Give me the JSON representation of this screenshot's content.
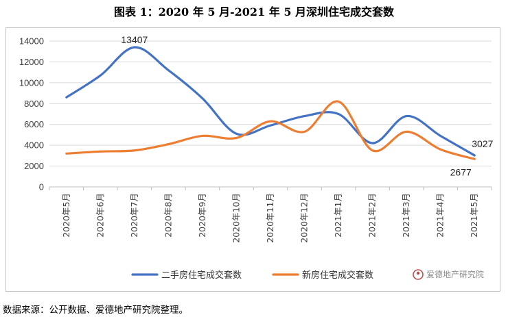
{
  "title": "图表 1：2020 年 5 月-2021 年 5 月深圳住宅成交套数",
  "source": "数据来源：公开数据、爱德地产研究院整理。",
  "watermark": "爱德地产研究院",
  "colors": {
    "series1": "#4472c4",
    "series2": "#ed7d31",
    "grid": "#d9d9d9",
    "axis": "#bfbfbf"
  },
  "chart_data": {
    "type": "line",
    "smooth": true,
    "categories": [
      "2020年5月",
      "2020年6月",
      "2020年7月",
      "2020年8月",
      "2020年9月",
      "2020年10月",
      "2020年11月",
      "2020年12月",
      "2021年1月",
      "2021年2月",
      "2021年3月",
      "2021年4月",
      "2021年5月"
    ],
    "ylim": [
      0,
      14000
    ],
    "yticks": [
      0,
      2000,
      4000,
      6000,
      8000,
      10000,
      12000,
      14000
    ],
    "grid": true,
    "legend": "bottom",
    "series": [
      {
        "name": "二手房住宅成交套数",
        "values": [
          8600,
          10700,
          13407,
          11200,
          8500,
          5100,
          5900,
          6800,
          7000,
          4200,
          6800,
          4900,
          3027
        ]
      },
      {
        "name": "新房住宅成交套数",
        "values": [
          3200,
          3400,
          3500,
          4100,
          4900,
          4700,
          6300,
          5300,
          8200,
          3500,
          5300,
          3600,
          2677
        ]
      }
    ],
    "data_labels": [
      {
        "series": 0,
        "index": 2,
        "text": "13407"
      },
      {
        "series": 0,
        "index": 12,
        "text": "3027"
      },
      {
        "series": 1,
        "index": 12,
        "text": "2677"
      }
    ]
  }
}
